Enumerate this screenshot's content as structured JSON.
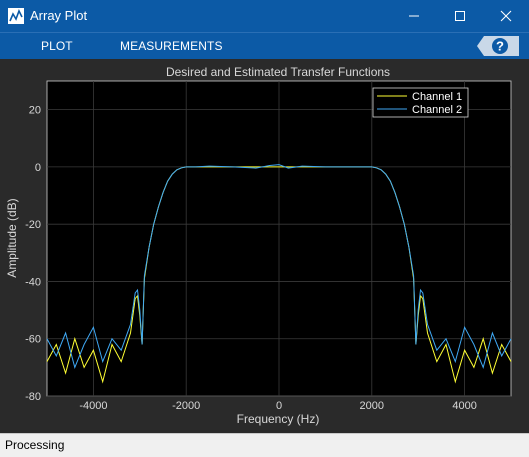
{
  "window": {
    "title": "Array Plot",
    "titlebar_color": "#0c5aa6"
  },
  "toolstrip": {
    "tabs": [
      {
        "label": "PLOT",
        "icon": ""
      },
      {
        "label": "MEASUREMENTS",
        "icon": ""
      }
    ],
    "help_icon": "question-icon"
  },
  "status": {
    "text": "Processing"
  },
  "chart_data": {
    "type": "line",
    "title": "Desired and Estimated Transfer Functions",
    "xlabel": "Frequency (Hz)",
    "ylabel": "Amplitude (dB)",
    "xlim": [
      -5000,
      5000
    ],
    "ylim": [
      -80,
      30
    ],
    "xticks": [
      -4000,
      -2000,
      0,
      2000,
      4000
    ],
    "yticks": [
      20,
      0,
      -20,
      -40,
      -60,
      -80
    ],
    "grid": true,
    "legend_position": "top-right",
    "background": "#000000",
    "series": [
      {
        "name": "Channel 1",
        "color": "#ffff33",
        "x": [
          -5000,
          -4800,
          -4600,
          -4400,
          -4200,
          -4000,
          -3800,
          -3600,
          -3400,
          -3200,
          -3100,
          -3050,
          -3000,
          -2950,
          -2900,
          -2800,
          -2700,
          -2600,
          -2500,
          -2400,
          -2300,
          -2200,
          -2100,
          -2000,
          -1800,
          -1500,
          -1000,
          -500,
          -200,
          0,
          200,
          500,
          1000,
          1500,
          1800,
          2000,
          2100,
          2200,
          2300,
          2400,
          2500,
          2600,
          2700,
          2800,
          2900,
          2950,
          3000,
          3050,
          3100,
          3200,
          3400,
          3600,
          3800,
          4000,
          4200,
          4400,
          4600,
          4800,
          5000
        ],
        "y": [
          -68,
          -62,
          -72,
          -60,
          -70,
          -64,
          -75,
          -62,
          -68,
          -58,
          -46,
          -45,
          -52,
          -62,
          -39,
          -28,
          -20,
          -14,
          -9,
          -5,
          -2.5,
          -1,
          -0.3,
          0,
          0,
          0,
          0,
          0,
          0,
          0,
          0,
          0,
          0,
          0,
          0,
          0,
          -0.3,
          -1,
          -2.5,
          -5,
          -9,
          -14,
          -20,
          -28,
          -39,
          -62,
          -52,
          -45,
          -46,
          -58,
          -68,
          -62,
          -75,
          -64,
          -70,
          -60,
          -72,
          -62,
          -68
        ]
      },
      {
        "name": "Channel 2",
        "color": "#3fa9f5",
        "x": [
          -5000,
          -4800,
          -4600,
          -4400,
          -4200,
          -4000,
          -3800,
          -3600,
          -3400,
          -3200,
          -3100,
          -3050,
          -3000,
          -2950,
          -2900,
          -2800,
          -2700,
          -2600,
          -2500,
          -2400,
          -2300,
          -2200,
          -2100,
          -2000,
          -1800,
          -1500,
          -1000,
          -500,
          -200,
          0,
          200,
          500,
          1000,
          1500,
          1800,
          2000,
          2100,
          2200,
          2300,
          2400,
          2500,
          2600,
          2700,
          2800,
          2900,
          2950,
          3000,
          3050,
          3100,
          3200,
          3400,
          3600,
          3800,
          4000,
          4200,
          4400,
          4600,
          4800,
          5000
        ],
        "y": [
          -60,
          -66,
          -58,
          -70,
          -62,
          -56,
          -68,
          -60,
          -64,
          -55,
          -44,
          -43,
          -50,
          -62,
          -38,
          -28,
          -20,
          -14,
          -9,
          -5,
          -2.5,
          -1,
          -0.3,
          0,
          0,
          0.3,
          0,
          -0.4,
          0.5,
          0.8,
          -0.4,
          0.3,
          0,
          0,
          0,
          0,
          -0.3,
          -1,
          -2.5,
          -5,
          -9,
          -14,
          -20,
          -28,
          -38,
          -62,
          -50,
          -43,
          -44,
          -55,
          -64,
          -60,
          -68,
          -56,
          -62,
          -70,
          -58,
          -66,
          -60
        ]
      }
    ]
  }
}
